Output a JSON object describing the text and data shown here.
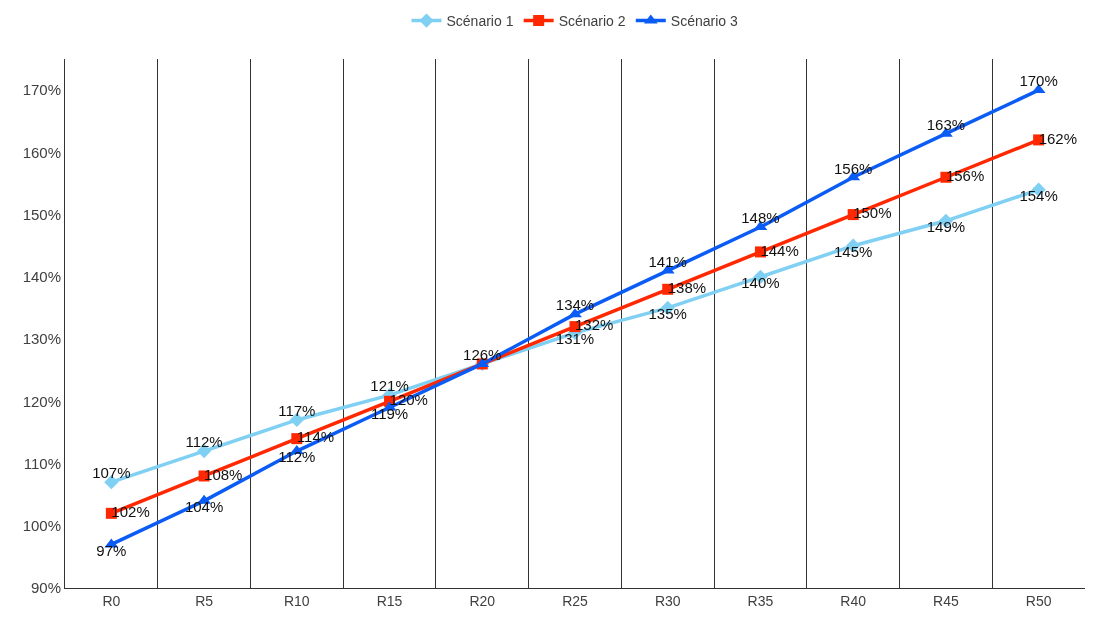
{
  "chart_data": {
    "type": "line",
    "categories": [
      "R0",
      "R5",
      "R10",
      "R15",
      "R20",
      "R25",
      "R30",
      "R35",
      "R40",
      "R45",
      "R50"
    ],
    "series": [
      {
        "name": "Scénario 1",
        "color": "#80d0f4",
        "marker": "diamond",
        "values": [
          107,
          112,
          117,
          121,
          126,
          131,
          135,
          140,
          145,
          149,
          154
        ],
        "value_labels": [
          "107%",
          "112%",
          "117%",
          "121%",
          "126%",
          "131%",
          "135%",
          "140%",
          "145%",
          "149%",
          "154%"
        ]
      },
      {
        "name": "Scénario 2",
        "color": "#ff2800",
        "marker": "square",
        "values": [
          102,
          108,
          114,
          120,
          126,
          132,
          138,
          144,
          150,
          156,
          162
        ],
        "value_labels": [
          "102%",
          "108%",
          "114%",
          "120%",
          null,
          "132%",
          "138%",
          "144%",
          "150%",
          "156%",
          "162%"
        ]
      },
      {
        "name": "Scénario 3",
        "color": "#0b5cf5",
        "marker": "triangle",
        "values": [
          97,
          104,
          112,
          119,
          126,
          134,
          141,
          148,
          156,
          163,
          170
        ],
        "value_labels": [
          "97%",
          "104%",
          "112%",
          "119%",
          null,
          "134%",
          "141%",
          "148%",
          "156%",
          "163%",
          "170%"
        ]
      }
    ],
    "ylim": [
      90,
      175
    ],
    "yticks": [
      {
        "value": 90,
        "label": "90%"
      },
      {
        "value": 100,
        "label": "100%"
      },
      {
        "value": 110,
        "label": "110%"
      },
      {
        "value": 120,
        "label": "120%"
      },
      {
        "value": 130,
        "label": "130%"
      },
      {
        "value": 140,
        "label": "140%"
      },
      {
        "value": 150,
        "label": "150%"
      },
      {
        "value": 160,
        "label": "160%"
      },
      {
        "value": 170,
        "label": "170%"
      }
    ],
    "grid": "x",
    "legend": "top"
  }
}
